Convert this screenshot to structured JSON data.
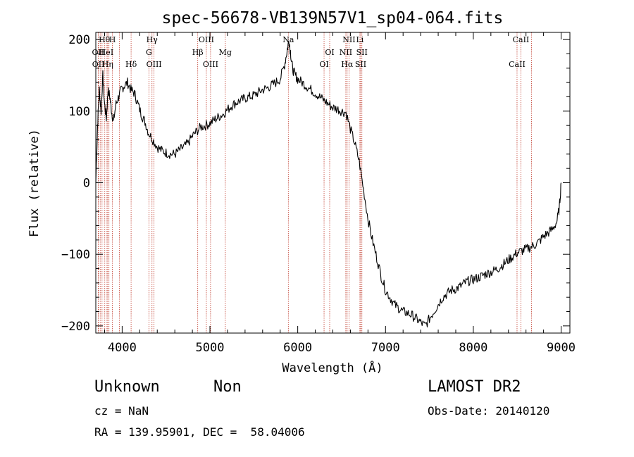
{
  "chart_data": {
    "type": "line",
    "title": "spec-56678-VB139N57V1_sp04-064.fits",
    "xlabel": "Wavelength (Å)",
    "ylabel": "Flux (relative)",
    "xlim": [
      3700,
      9100
    ],
    "ylim": [
      -210,
      210
    ],
    "x_ticks": [
      4000,
      5000,
      6000,
      7000,
      8000,
      9000
    ],
    "y_ticks": [
      -200,
      -100,
      0,
      100,
      200
    ],
    "grid": false,
    "line_color": "#000000",
    "marker_color": "#c03a2b",
    "series": [
      {
        "x": [
          3700,
          3720,
          3740,
          3760,
          3780,
          3800,
          3820,
          3840,
          3860,
          3880,
          3900,
          3930,
          3960,
          3990,
          4020,
          4060,
          4100,
          4140,
          4180,
          4220,
          4260,
          4300,
          4350,
          4400,
          4450,
          4500,
          4550,
          4600,
          4650,
          4700,
          4750,
          4800,
          4850,
          4900,
          4950,
          5000,
          5050,
          5100,
          5150,
          5200,
          5250,
          5300,
          5350,
          5400,
          5450,
          5500,
          5550,
          5600,
          5650,
          5700,
          5750,
          5800,
          5850,
          5880,
          5900,
          5920,
          5940,
          5970,
          6000,
          6050,
          6100,
          6150,
          6200,
          6250,
          6300,
          6350,
          6400,
          6450,
          6500,
          6550,
          6600,
          6650,
          6700,
          6750,
          6800,
          6850,
          6900,
          6950,
          7000,
          7050,
          7100,
          7150,
          7200,
          7250,
          7300,
          7350,
          7400,
          7450,
          7500,
          7550,
          7600,
          7650,
          7700,
          7750,
          7800,
          7850,
          7900,
          7950,
          8000,
          8050,
          8100,
          8150,
          8200,
          8250,
          8300,
          8350,
          8400,
          8450,
          8500,
          8550,
          8600,
          8650,
          8700,
          8750,
          8800,
          8850,
          8900,
          8950,
          8980,
          9000
        ],
        "y": [
          0,
          80,
          130,
          100,
          150,
          110,
          90,
          130,
          120,
          100,
          85,
          110,
          120,
          130,
          135,
          140,
          130,
          125,
          110,
          95,
          85,
          70,
          60,
          50,
          45,
          42,
          40,
          40,
          45,
          50,
          55,
          65,
          72,
          78,
          80,
          83,
          88,
          92,
          96,
          102,
          108,
          112,
          115,
          118,
          120,
          122,
          126,
          130,
          132,
          136,
          140,
          145,
          165,
          185,
          200,
          180,
          160,
          150,
          145,
          140,
          135,
          130,
          125,
          120,
          115,
          110,
          105,
          103,
          100,
          98,
          75,
          55,
          30,
          -10,
          -50,
          -80,
          -105,
          -130,
          -150,
          -160,
          -170,
          -175,
          -180,
          -182,
          -185,
          -190,
          -195,
          -200,
          -190,
          -180,
          -170,
          -160,
          -155,
          -150,
          -148,
          -145,
          -140,
          -137,
          -135,
          -133,
          -130,
          -127,
          -125,
          -122,
          -118,
          -113,
          -108,
          -103,
          -98,
          -95,
          -93,
          -90,
          -87,
          -82,
          -75,
          -70,
          -65,
          -55,
          -35,
          0
        ]
      }
    ],
    "line_markers": [
      {
        "label": "Hθ",
        "x": 3798,
        "row": 0
      },
      {
        "label": "OII",
        "x": 3727,
        "row": 1
      },
      {
        "label": "OII",
        "x": 3729,
        "row": 2
      },
      {
        "label": "HeI",
        "x": 3820,
        "row": 1
      },
      {
        "label": "Hη",
        "x": 3835,
        "row": 2
      },
      {
        "label": "H",
        "x": 3889,
        "row": 0
      },
      {
        "label": "Hδ",
        "x": 4102,
        "row": 2
      },
      {
        "label": "Hγ",
        "x": 4340,
        "row": 0
      },
      {
        "label": "G",
        "x": 4305,
        "row": 1
      },
      {
        "label": "OIII",
        "x": 4363,
        "row": 2
      },
      {
        "label": "OIII",
        "x": 4959,
        "row": 0
      },
      {
        "label": "Hβ",
        "x": 4861,
        "row": 1
      },
      {
        "label": "OIII",
        "x": 5007,
        "row": 2
      },
      {
        "label": "Mg",
        "x": 5175,
        "row": 1
      },
      {
        "label": "Na",
        "x": 5893,
        "row": 0
      },
      {
        "label": "OI",
        "x": 6364,
        "row": 1
      },
      {
        "label": "OI",
        "x": 6300,
        "row": 2
      },
      {
        "label": "NII",
        "x": 6584,
        "row": 0
      },
      {
        "label": "Li",
        "x": 6708,
        "row": 0
      },
      {
        "label": "NII",
        "x": 6548,
        "row": 1
      },
      {
        "label": "SII",
        "x": 6731,
        "row": 1
      },
      {
        "label": "Hα",
        "x": 6563,
        "row": 2
      },
      {
        "label": "SII",
        "x": 6717,
        "row": 2
      },
      {
        "label": "CaII",
        "x": 8542,
        "row": 0
      },
      {
        "label": "CaII",
        "x": 8498,
        "row": 2
      }
    ],
    "extra_marker_lines": [
      3750,
      3771,
      3850,
      3970,
      4340,
      8662
    ]
  },
  "info": {
    "class_label": "Unknown",
    "subclass_label": "Non",
    "survey_label": "LAMOST DR2",
    "redshift_text": "cz = NaN",
    "obs_date_text": "Obs-Date: 20140120",
    "coords_text": "RA = 139.95901, DEC =  58.04006"
  }
}
